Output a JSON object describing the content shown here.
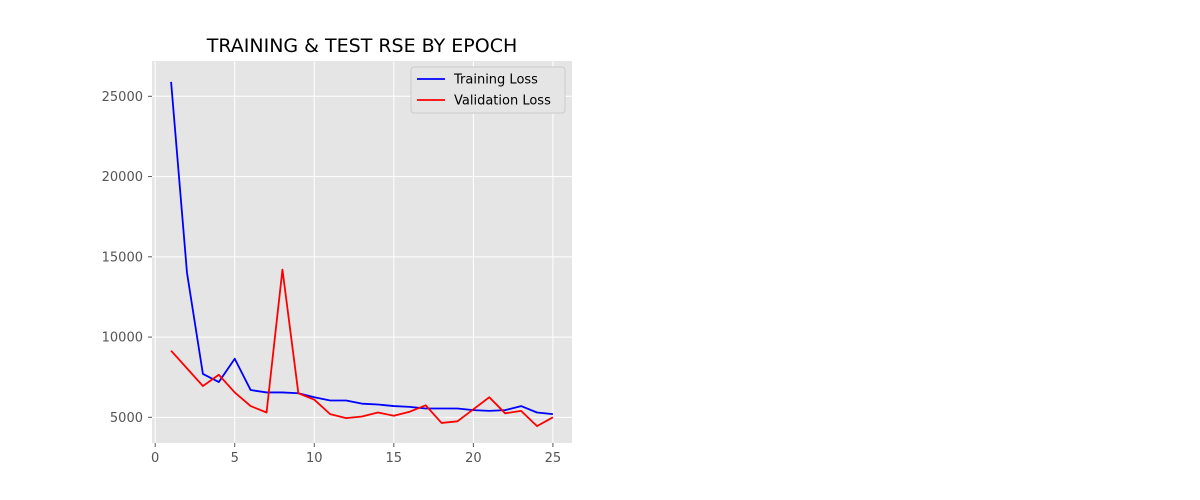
{
  "chart_data": {
    "type": "line",
    "title": "TRAINING & TEST RSE BY EPOCH",
    "xlabel": "",
    "ylabel": "",
    "xlim": [
      -0.2,
      26.2
    ],
    "ylim": [
      3400,
      27200
    ],
    "x_ticks": [
      0,
      5,
      10,
      15,
      20,
      25
    ],
    "y_ticks": [
      5000,
      10000,
      15000,
      20000,
      25000
    ],
    "grid": true,
    "legend_position": "top-right",
    "x": [
      1,
      2,
      3,
      4,
      5,
      6,
      7,
      8,
      9,
      10,
      11,
      12,
      13,
      14,
      15,
      16,
      17,
      18,
      19,
      20,
      21,
      22,
      23,
      24,
      25
    ],
    "series": [
      {
        "name": "Training Loss",
        "color": "#0000ff",
        "values": [
          25900,
          14000,
          7700,
          7200,
          8650,
          6700,
          6550,
          6550,
          6500,
          6250,
          6050,
          6050,
          5850,
          5800,
          5700,
          5650,
          5550,
          5550,
          5550,
          5450,
          5400,
          5450,
          5700,
          5300,
          5200
        ]
      },
      {
        "name": "Validation Loss",
        "color": "#ff0000",
        "values": [
          9150,
          8050,
          6950,
          7650,
          6550,
          5700,
          5300,
          14200,
          6500,
          6100,
          5200,
          4950,
          5050,
          5300,
          5100,
          5350,
          5750,
          4650,
          4750,
          5500,
          6250,
          5250,
          5400,
          4450,
          5000
        ]
      }
    ]
  },
  "colors": {
    "plot_background": "#e5e5e5",
    "grid": "#ffffff",
    "legend_background": "#e5e5e5",
    "legend_border": "#cccccc"
  }
}
